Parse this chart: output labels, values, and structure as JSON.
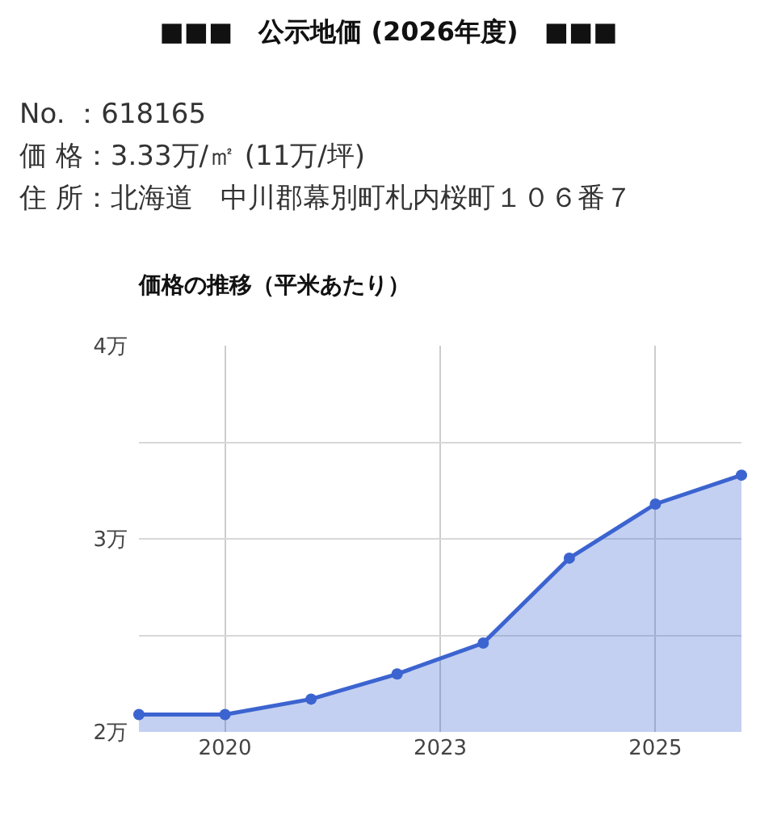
{
  "chart_data": {
    "type": "area",
    "title": "■■■　公示地価 (2026年度)　■■■",
    "annotations": [
      "No. ：618165",
      "価 格：3.33万/㎡ (11万/坪)",
      "住 所：北海道　中川郡幕別町札内桜町１０６番７"
    ],
    "subtitle": "価格の推移（平米あたり）",
    "x": [
      2019,
      2020,
      2021,
      2022,
      2023,
      2024,
      2025,
      2026
    ],
    "values": [
      2.09,
      2.09,
      2.17,
      2.3,
      2.46,
      2.9,
      3.18,
      3.33
    ],
    "color": "#3c64d0",
    "xlim": [
      2019,
      2026
    ],
    "xticks": [
      2020,
      {
        "value": 2022.5,
        "label": "2023"
      },
      2025
    ],
    "ylim": [
      2,
      4
    ],
    "yticks": [
      {
        "value": 2,
        "label": "2万"
      },
      {
        "value": 2.5,
        "label": null
      },
      {
        "value": 3,
        "label": "3万"
      },
      {
        "value": 3.5,
        "label": null
      },
      {
        "value": 4,
        "label": "4万"
      }
    ],
    "grid": true,
    "marker": "circle",
    "line_style": "solid"
  }
}
